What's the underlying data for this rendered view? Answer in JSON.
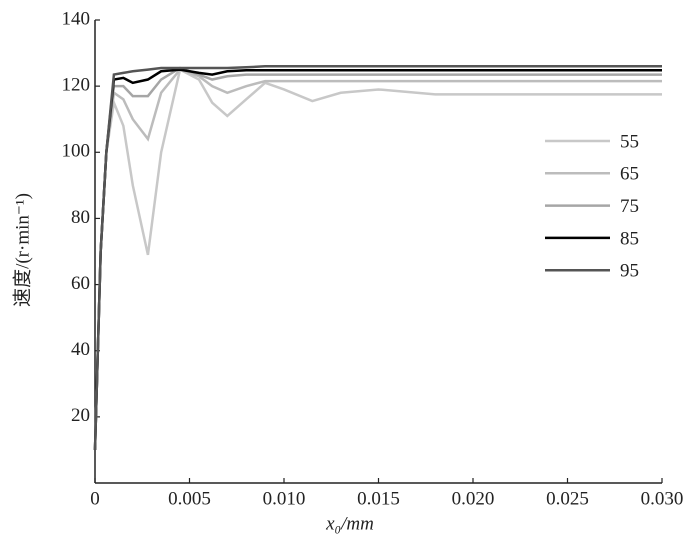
{
  "chart_data": {
    "type": "line",
    "x_label": "x₀/mm",
    "y_label": "速度/(r·min⁻¹)",
    "x": [
      0,
      0.0003,
      0.0006,
      0.001,
      0.0015,
      0.002,
      0.0028,
      0.0035,
      0.0045,
      0.0055,
      0.0062,
      0.007,
      0.008,
      0.009,
      0.01,
      0.0115,
      0.013,
      0.015,
      0.018,
      0.03
    ],
    "series": [
      {
        "name": "55",
        "color": "#c8c8c8",
        "values": [
          10,
          70,
          100,
          115,
          108,
          90,
          69,
          100,
          125,
          122,
          115,
          111,
          116,
          121,
          119,
          115.5,
          118,
          119,
          117.5,
          117.5
        ]
      },
      {
        "name": "65",
        "color": "#bcbcbc",
        "values": [
          10,
          70,
          100,
          118,
          116,
          110,
          104,
          118,
          125,
          123,
          120,
          118,
          120,
          121.5,
          121.5,
          121.5,
          121.5,
          121.5,
          121.5,
          121.5
        ]
      },
      {
        "name": "75",
        "color": "#a6a6a6",
        "values": [
          10,
          70,
          100,
          120,
          120,
          117,
          117,
          122,
          125.5,
          123.5,
          122,
          123,
          123.5,
          123.5,
          123.5,
          123.5,
          123.5,
          123.5,
          123.5,
          123.5
        ]
      },
      {
        "name": "85",
        "color": "#000000",
        "values": [
          10,
          70,
          100,
          122,
          122.5,
          121,
          122,
          124.5,
          125,
          124,
          123.5,
          124.5,
          124.8,
          124.8,
          124.8,
          124.8,
          124.8,
          124.8,
          124.8,
          124.8
        ]
      },
      {
        "name": "95",
        "color": "#555555",
        "values": [
          10,
          70,
          100,
          123.5,
          124,
          124.5,
          125,
          125.5,
          125.5,
          125.5,
          125.5,
          125.5,
          125.7,
          126,
          126,
          126,
          126,
          126,
          126,
          126
        ]
      }
    ],
    "xlim": [
      0,
      0.03
    ],
    "xticks": [
      0,
      0.005,
      {
        "value": 0.01,
        "label": "0.010"
      },
      0.015,
      {
        "value": 0.02,
        "label": "0.020"
      },
      0.025,
      {
        "value": 0.03,
        "label": "0.030"
      }
    ],
    "ylim": [
      0,
      140
    ],
    "yticks": [
      20,
      40,
      60,
      80,
      100,
      120,
      140
    ],
    "legend_position": "right"
  }
}
